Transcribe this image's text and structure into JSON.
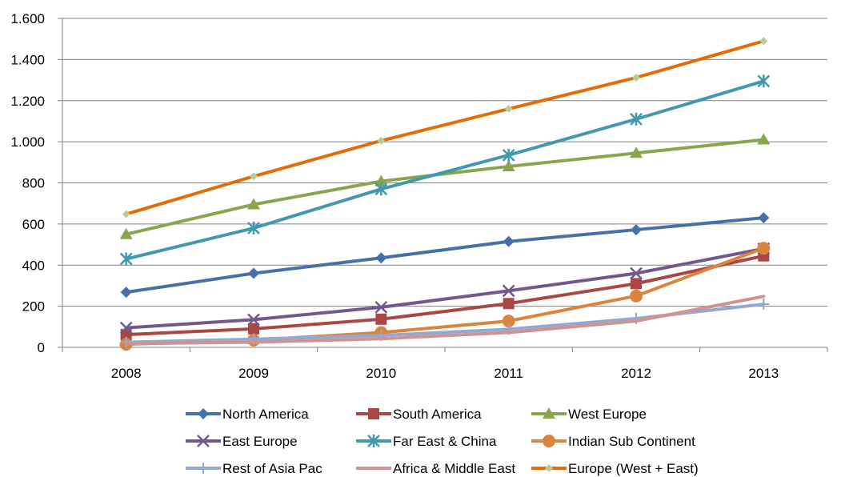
{
  "chart_data": {
    "type": "line",
    "title": "",
    "xlabel": "",
    "ylabel": "",
    "categories": [
      "2008",
      "2009",
      "2010",
      "2011",
      "2012",
      "2013"
    ],
    "ylim": [
      0,
      1600
    ],
    "yticks": [
      {
        "value": 0,
        "label": "0"
      },
      {
        "value": 200,
        "label": "200"
      },
      {
        "value": 400,
        "label": "400"
      },
      {
        "value": 600,
        "label": "600"
      },
      {
        "value": 800,
        "label": "800"
      },
      {
        "value": 1000,
        "label": "1.000"
      },
      {
        "value": 1200,
        "label": "1.200"
      },
      {
        "value": 1400,
        "label": "1.400"
      },
      {
        "value": 1600,
        "label": "1.600"
      }
    ],
    "grid": true,
    "legend_position": "bottom",
    "series": [
      {
        "name": "North America",
        "color": "#4570A8",
        "marker": "diamond",
        "values": [
          268,
          360,
          435,
          515,
          572,
          630
        ]
      },
      {
        "name": "South America",
        "color": "#AA4643",
        "marker": "square",
        "values": [
          62,
          90,
          137,
          213,
          310,
          445
        ]
      },
      {
        "name": "West Europe",
        "color": "#89A54E",
        "marker": "triangle",
        "values": [
          550,
          695,
          808,
          880,
          945,
          1010
        ]
      },
      {
        "name": "East Europe",
        "color": "#71588F",
        "marker": "x",
        "values": [
          95,
          135,
          195,
          275,
          360,
          480
        ]
      },
      {
        "name": "Far East  & China",
        "color": "#4198AF",
        "marker": "star",
        "values": [
          430,
          580,
          770,
          935,
          1110,
          1295
        ]
      },
      {
        "name": "Indian Sub Continent",
        "color": "#DB843D",
        "marker": "circle",
        "values": [
          15,
          35,
          72,
          128,
          250,
          482
        ]
      },
      {
        "name": "Rest of Asia Pac",
        "color": "#93A9CF",
        "marker": "plus",
        "values": [
          25,
          40,
          58,
          88,
          140,
          210
        ]
      },
      {
        "name": "Africa & Middle East",
        "color": "#D19392",
        "marker": "none",
        "values": [
          18,
          25,
          42,
          72,
          128,
          248
        ]
      },
      {
        "name": "Europe (West + East)",
        "color": "#E36C0A",
        "marker": "smalldiamond",
        "marker_color": "#B9CD96",
        "values": [
          648,
          832,
          1005,
          1160,
          1312,
          1490
        ]
      }
    ]
  }
}
